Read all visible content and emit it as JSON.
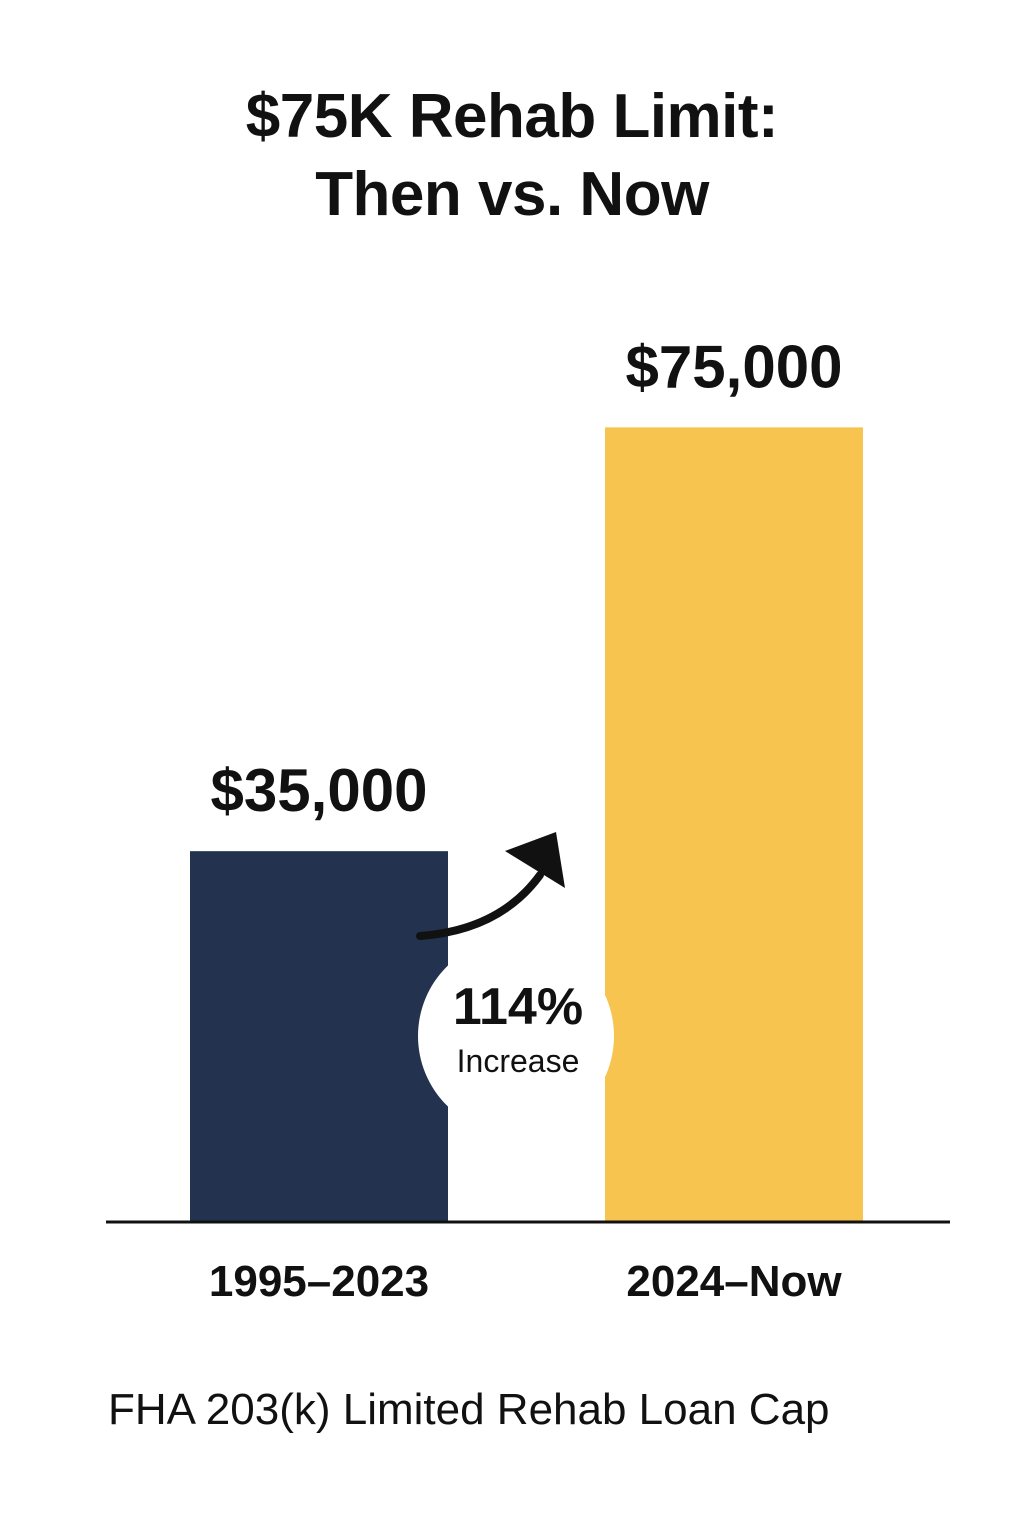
{
  "chart_data": {
    "type": "bar",
    "title_lines": [
      "$75K Rehab Limit:",
      "Then vs. Now"
    ],
    "categories": [
      "1995–2023",
      "2024–Now"
    ],
    "values": [
      35000,
      75000
    ],
    "data_labels": [
      "$35,000",
      "$75,000"
    ],
    "bar_colors": [
      "#22324f",
      "#f7c44f"
    ],
    "annotation": {
      "value": "114%",
      "text": "Increase"
    },
    "ylim": [
      0,
      84000
    ],
    "grid": false,
    "xlabel": "",
    "ylabel": ""
  },
  "footnote": "FHA 203(k) Limited Rehab Loan Cap"
}
